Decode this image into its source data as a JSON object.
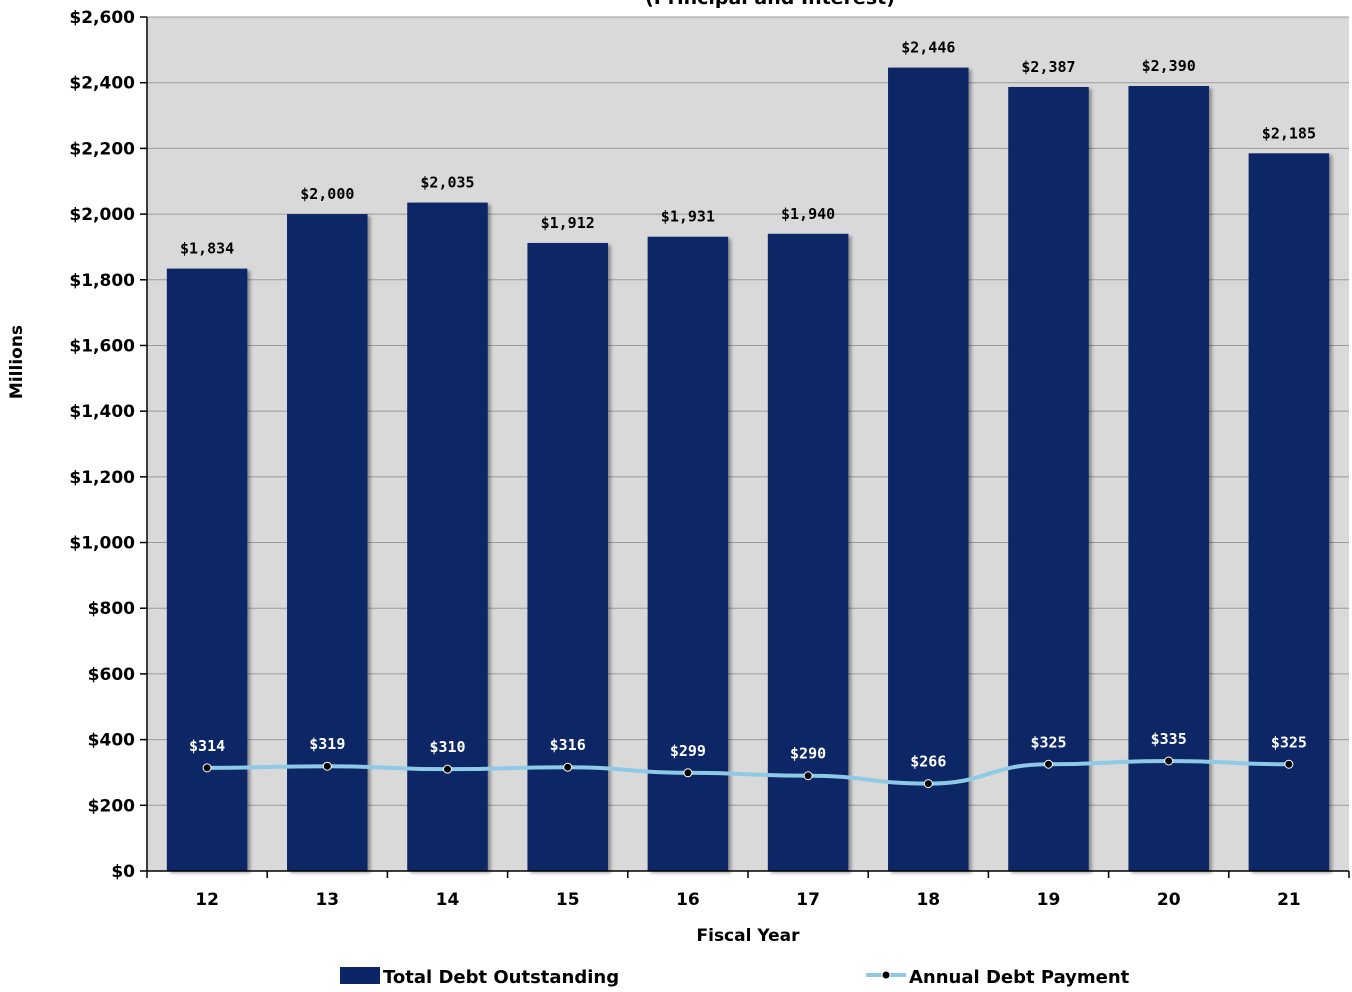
{
  "chart_data": {
    "type": "bar",
    "title": "(Principal and Interest)",
    "xlabel": "Fiscal Year",
    "ylabel": "Millions",
    "categories": [
      "12",
      "13",
      "14",
      "15",
      "16",
      "17",
      "18",
      "19",
      "20",
      "21"
    ],
    "ylim": [
      0,
      2600
    ],
    "yticks": [
      0,
      200,
      400,
      600,
      800,
      1000,
      1200,
      1400,
      1600,
      1800,
      2000,
      2200,
      2400,
      2600
    ],
    "ytick_labels": [
      "$0",
      "$200",
      "$400",
      "$600",
      "$800",
      "$1,000",
      "$1,200",
      "$1,400",
      "$1,600",
      "$1,800",
      "$2,000",
      "$2,200",
      "$2,400",
      "$2,600"
    ],
    "grid": true,
    "legend_placement": "bottom",
    "series": [
      {
        "name": "Total Debt Outstanding",
        "kind": "bar",
        "color": "#0b2566",
        "values": [
          1834,
          2000,
          2035,
          1912,
          1931,
          1940,
          2446,
          2387,
          2390,
          2185
        ],
        "labels": [
          "$1,834",
          "$2,000",
          "$2,035",
          "$1,912",
          "$1,931",
          "$1,940",
          "$2,446",
          "$2,387",
          "$2,390",
          "$2,185"
        ]
      },
      {
        "name": "Annual Debt Payment",
        "kind": "line",
        "color": "#8ecae6",
        "marker_color": "#000000",
        "values": [
          314,
          319,
          310,
          316,
          299,
          290,
          266,
          325,
          335,
          325
        ],
        "labels": [
          "$314",
          "$319",
          "$310",
          "$316",
          "$299",
          "$290",
          "$266",
          "$325",
          "$335",
          "$325"
        ]
      }
    ]
  }
}
